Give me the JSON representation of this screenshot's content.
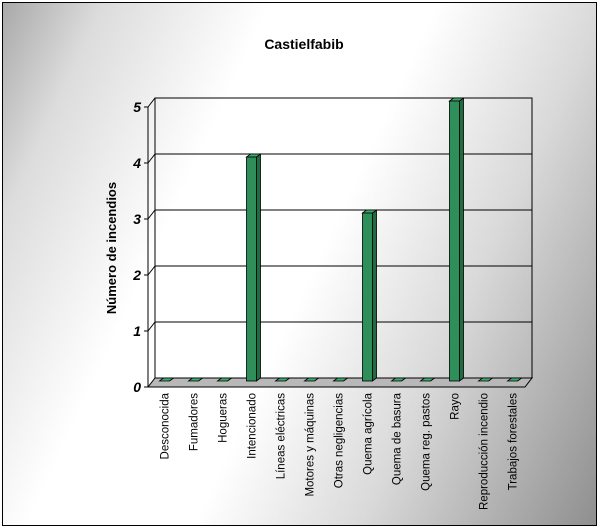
{
  "chart_data": {
    "type": "bar",
    "title": "Castielfabib",
    "ylabel": "Número de incendios",
    "xlabel": "",
    "ylim": [
      0,
      5
    ],
    "yticks": [
      0,
      1,
      2,
      3,
      4,
      5
    ],
    "grid": true,
    "legend": "none",
    "categories": [
      "Desconocida",
      "Fumadores",
      "Hogueras",
      "Intencionado",
      "Líneas eléctricas",
      "Motores y máquinas",
      "Otras negligencias",
      "Quema agrícola",
      "Quema de basura",
      "Quema reg. pastos",
      "Rayo",
      "Reproducción incendio",
      "Trabajos forestales"
    ],
    "values": [
      0,
      0,
      0,
      4,
      0,
      0,
      0,
      3,
      0,
      0,
      5,
      0,
      0
    ],
    "colors": {
      "bar_front": "#2f8f5b",
      "bar_side": "#1f6b42",
      "bar_top": "#3cab6e",
      "grid": "#000000"
    }
  }
}
